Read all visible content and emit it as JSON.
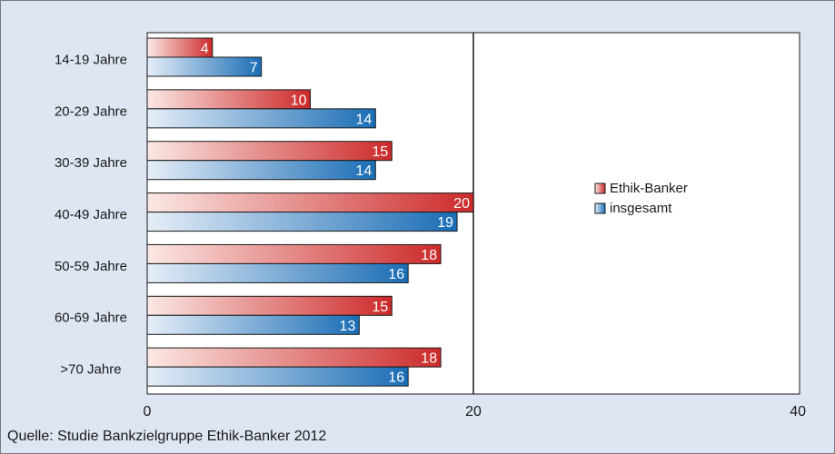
{
  "chart_data": {
    "type": "bar",
    "orientation": "horizontal",
    "categories": [
      "14-19 Jahre",
      "20-29 Jahre",
      "30-39 Jahre",
      "40-49 Jahre",
      "50-59 Jahre",
      "60-69 Jahre",
      ">70 Jahre"
    ],
    "series": [
      {
        "name": "Ethik-Banker",
        "values": [
          4,
          10,
          15,
          20,
          18,
          15,
          18
        ],
        "color": "#cc2a2a"
      },
      {
        "name": "insgesamt",
        "values": [
          7,
          14,
          14,
          19,
          16,
          13,
          16
        ],
        "color": "#1a6db5"
      }
    ],
    "xlim": [
      0,
      40
    ],
    "x_ticks": [
      "0",
      "20",
      "40"
    ],
    "grid": "vertical line at 20",
    "legend": "right-center"
  },
  "source": "Quelle: Studie Bankzielgruppe Ethik-Banker 2012"
}
